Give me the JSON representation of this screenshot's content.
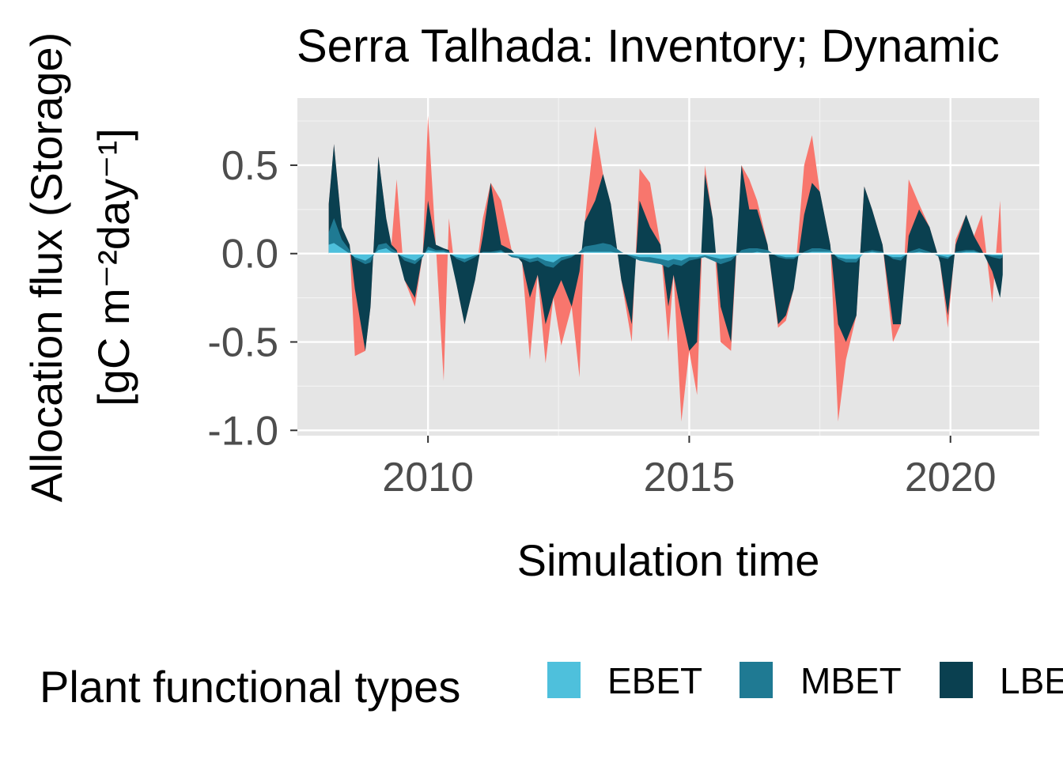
{
  "chart_data": {
    "type": "area",
    "title": "Serra Talhada: Inventory; Dynamic",
    "xlabel": "Simulation time",
    "ylabel": "Allocation flux (Storage)",
    "ylabel_unit": "[gC m⁻²day⁻¹]",
    "x_ticks": [
      "2010",
      "2015",
      "2020"
    ],
    "x_tick_values": [
      2010,
      2015,
      2020
    ],
    "y_ticks": [
      "0.5",
      "0.0",
      "-0.5",
      "-1.0"
    ],
    "y_tick_values": [
      0.5,
      0.0,
      -0.5,
      -1.0
    ],
    "xlim": [
      2007.5,
      2021.7
    ],
    "ylim": [
      -1.03,
      0.88
    ],
    "grid": true,
    "legend": {
      "title": "Plant functional types",
      "position": "bottom"
    },
    "colors": {
      "panel": "#e5e5e5",
      "grid": "#ffffff",
      "total": "#f8766d",
      "EBET": "#4ec0dc",
      "MBET": "#1f7a93",
      "LBET": "#0a4050",
      "text": "#4d4d4d"
    },
    "x": [
      2008.1,
      2008.2,
      2008.35,
      2008.5,
      2008.6,
      2008.8,
      2008.9,
      2009.05,
      2009.2,
      2009.3,
      2009.4,
      2009.55,
      2009.75,
      2009.9,
      2010.0,
      2010.15,
      2010.3,
      2010.4,
      2010.55,
      2010.7,
      2010.9,
      2011.05,
      2011.2,
      2011.4,
      2011.6,
      2011.8,
      2011.95,
      2012.1,
      2012.25,
      2012.4,
      2012.55,
      2012.75,
      2012.9,
      2013.0,
      2013.2,
      2013.35,
      2013.5,
      2013.7,
      2013.9,
      2014.05,
      2014.25,
      2014.45,
      2014.6,
      2014.7,
      2014.85,
      2015.0,
      2015.15,
      2015.3,
      2015.45,
      2015.6,
      2015.8,
      2016.0,
      2016.15,
      2016.3,
      2016.5,
      2016.7,
      2016.85,
      2017.0,
      2017.2,
      2017.35,
      2017.5,
      2017.7,
      2017.85,
      2018.0,
      2018.2,
      2018.35,
      2018.5,
      2018.7,
      2018.9,
      2019.05,
      2019.2,
      2019.4,
      2019.6,
      2019.8,
      2019.95,
      2020.1,
      2020.3,
      2020.45,
      2020.6,
      2020.8,
      2020.95,
      2021.0
    ],
    "series": [
      {
        "name": "EBET",
        "values": [
          0.05,
          0.06,
          0.03,
          0.0,
          -0.02,
          -0.04,
          -0.02,
          0.02,
          0.03,
          0.01,
          0.0,
          -0.02,
          -0.04,
          -0.01,
          0.02,
          0.01,
          0.01,
          0.0,
          -0.02,
          -0.03,
          -0.01,
          0.0,
          0.0,
          0.01,
          -0.01,
          -0.02,
          -0.03,
          -0.02,
          -0.04,
          -0.05,
          -0.02,
          -0.01,
          0.0,
          0.01,
          0.01,
          0.01,
          0.01,
          0.0,
          -0.01,
          -0.02,
          -0.02,
          -0.03,
          -0.04,
          -0.03,
          -0.04,
          -0.02,
          -0.02,
          -0.01,
          -0.02,
          -0.03,
          -0.02,
          0.0,
          0.0,
          0.01,
          0.0,
          -0.01,
          -0.02,
          -0.02,
          0.0,
          0.01,
          0.01,
          0.01,
          -0.02,
          -0.03,
          -0.03,
          0.0,
          0.01,
          0.0,
          -0.02,
          -0.02,
          0.0,
          0.01,
          0.0,
          -0.01,
          -0.02,
          0.0,
          0.01,
          0.01,
          0.0,
          -0.01,
          -0.01,
          -0.01
        ]
      },
      {
        "name": "MBET",
        "values": [
          0.12,
          0.2,
          0.08,
          0.02,
          -0.03,
          -0.06,
          -0.05,
          0.05,
          0.06,
          0.03,
          0.01,
          -0.04,
          -0.06,
          -0.02,
          0.04,
          0.02,
          0.02,
          0.01,
          -0.03,
          -0.05,
          -0.02,
          0.01,
          0.01,
          0.02,
          -0.02,
          -0.03,
          -0.05,
          -0.04,
          -0.07,
          -0.08,
          -0.04,
          -0.02,
          0.01,
          0.04,
          0.05,
          0.06,
          0.05,
          0.01,
          -0.02,
          -0.04,
          -0.05,
          -0.06,
          -0.08,
          -0.06,
          -0.07,
          -0.04,
          -0.03,
          -0.02,
          -0.04,
          -0.06,
          -0.04,
          0.02,
          0.03,
          0.03,
          0.02,
          -0.02,
          -0.03,
          -0.03,
          0.01,
          0.03,
          0.03,
          0.02,
          -0.03,
          -0.05,
          -0.05,
          0.01,
          0.02,
          0.01,
          -0.03,
          -0.04,
          0.01,
          0.03,
          0.01,
          -0.02,
          -0.03,
          0.01,
          0.02,
          0.02,
          0.0,
          -0.02,
          -0.03,
          -0.02
        ]
      },
      {
        "name": "LBET",
        "values": [
          0.28,
          0.62,
          0.15,
          0.05,
          -0.2,
          -0.55,
          -0.3,
          0.55,
          0.2,
          0.05,
          0.02,
          -0.15,
          -0.25,
          0.0,
          0.3,
          0.05,
          0.03,
          0.02,
          -0.18,
          -0.4,
          -0.15,
          0.1,
          0.4,
          0.05,
          0.02,
          -0.05,
          -0.25,
          -0.12,
          -0.4,
          -0.25,
          -0.15,
          -0.3,
          -0.1,
          0.18,
          0.3,
          0.45,
          0.28,
          -0.15,
          -0.4,
          0.3,
          0.15,
          0.05,
          -0.3,
          -0.12,
          -0.35,
          -0.55,
          -0.5,
          0.45,
          0.2,
          -0.3,
          -0.5,
          0.5,
          0.25,
          0.25,
          0.05,
          -0.4,
          -0.35,
          -0.2,
          0.22,
          0.4,
          0.35,
          0.05,
          -0.4,
          -0.5,
          -0.35,
          0.38,
          0.25,
          0.05,
          -0.4,
          -0.4,
          0.1,
          0.25,
          0.15,
          -0.05,
          -0.35,
          0.05,
          0.22,
          0.1,
          0.02,
          -0.1,
          -0.25,
          -0.12
        ]
      }
    ],
    "total_values": [
      0.28,
      0.62,
      0.15,
      0.05,
      -0.58,
      -0.55,
      -0.3,
      0.55,
      0.2,
      0.05,
      0.42,
      -0.15,
      -0.3,
      0.0,
      0.78,
      0.05,
      -0.72,
      0.2,
      -0.18,
      -0.4,
      -0.15,
      0.2,
      0.4,
      0.3,
      0.02,
      -0.05,
      -0.6,
      -0.12,
      -0.62,
      -0.25,
      -0.52,
      -0.3,
      -0.7,
      0.18,
      0.72,
      0.45,
      0.28,
      -0.15,
      -0.5,
      0.48,
      0.4,
      0.05,
      -0.5,
      -0.12,
      -0.95,
      -0.55,
      -0.8,
      0.5,
      0.2,
      -0.5,
      -0.55,
      0.5,
      0.42,
      0.3,
      0.05,
      -0.42,
      -0.38,
      -0.2,
      0.5,
      0.67,
      0.35,
      0.05,
      -0.95,
      -0.6,
      -0.35,
      0.38,
      0.25,
      0.05,
      -0.5,
      -0.4,
      0.42,
      0.28,
      0.15,
      -0.05,
      -0.42,
      0.08,
      0.22,
      0.1,
      0.22,
      -0.28,
      0.3,
      -0.12
    ]
  }
}
